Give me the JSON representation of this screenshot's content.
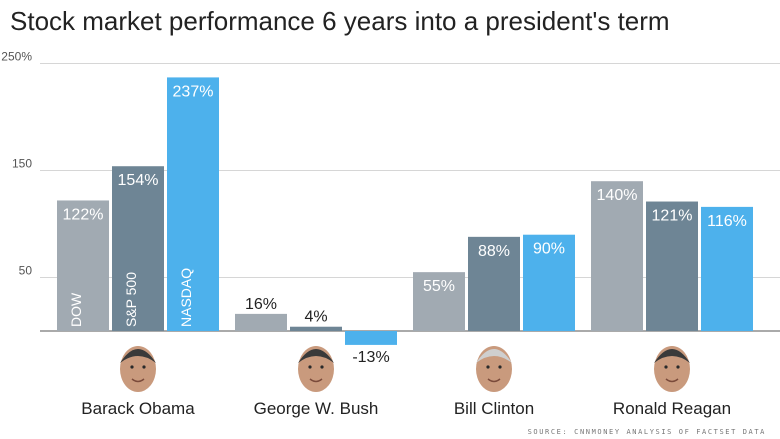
{
  "chart_data": {
    "type": "bar",
    "title": "Stock market performance 6 years into a president's term",
    "categories": [
      "Barack Obama",
      "George W. Bush",
      "Bill Clinton",
      "Ronald Reagan"
    ],
    "series": [
      {
        "name": "DOW",
        "color": "#a1aab2",
        "values": [
          122,
          16,
          55,
          140
        ],
        "labels": [
          "122%",
          "16%",
          "55%",
          "140%"
        ]
      },
      {
        "name": "S&P 500",
        "color": "#6e8595",
        "values": [
          154,
          4,
          88,
          121
        ],
        "labels": [
          "154%",
          "4%",
          "88%",
          "121%"
        ]
      },
      {
        "name": "NASDAQ",
        "color": "#4db1ec",
        "values": [
          237,
          -13,
          90,
          116
        ],
        "labels": [
          "237%",
          "-13%",
          "90%",
          "116%"
        ]
      }
    ],
    "y_ticks": [
      {
        "value": 250,
        "label": "250%"
      },
      {
        "value": 150,
        "label": "150"
      },
      {
        "value": 50,
        "label": "50"
      }
    ],
    "ylim": [
      -13,
      250
    ],
    "grid": true,
    "legend": "series names printed vertically inside the first group's bars"
  },
  "portrait_icons": [
    "obama-portrait-icon",
    "bush-portrait-icon",
    "clinton-portrait-icon",
    "reagan-portrait-icon"
  ],
  "source": "SOURCE: CNNMONEY ANALYSIS OF FACTSET DATA"
}
